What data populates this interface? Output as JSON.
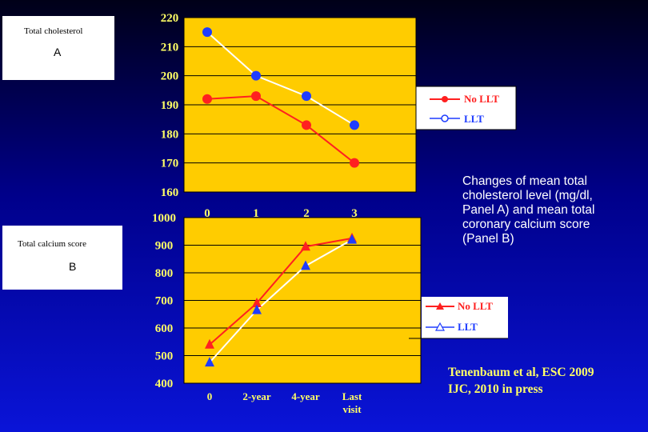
{
  "chart_data": [
    {
      "type": "line",
      "panel_label": "A",
      "ylabel": "Total cholesterol",
      "ylim": [
        160,
        220
      ],
      "yticks": [
        "160",
        "170",
        "180",
        "190",
        "200",
        "210",
        "220"
      ],
      "categories": [
        "0",
        "1",
        "2",
        "3"
      ],
      "grid": true,
      "legend_position": "right",
      "series": [
        {
          "name": "No LLT",
          "color": "#ff2020",
          "marker": "circle",
          "values": [
            192,
            193,
            183,
            170
          ]
        },
        {
          "name": "LLT",
          "color": "#ffffff",
          "marker_color": "#1e3cff",
          "marker": "circle",
          "values": [
            215,
            200,
            193,
            183
          ]
        }
      ]
    },
    {
      "type": "line",
      "panel_label": "B",
      "ylabel": "Total calcium score",
      "ylim": [
        400,
        1000
      ],
      "yticks": [
        "400",
        "500",
        "600",
        "700",
        "800",
        "900",
        "1000"
      ],
      "categories": [
        "0",
        "2-year",
        "4-year",
        "Last visit"
      ],
      "grid": true,
      "legend_position": "right",
      "series": [
        {
          "name": "No LLT",
          "color": "#ff2020",
          "marker": "triangle",
          "values": [
            540,
            690,
            895,
            925
          ]
        },
        {
          "name": "LLT",
          "color": "#ffffff",
          "marker_color": "#1e3cff",
          "marker": "triangle",
          "values": [
            475,
            665,
            825,
            920
          ]
        }
      ]
    }
  ],
  "caption": {
    "lines": [
      "Changes of mean total",
      "cholesterol level (mg/dl,",
      "Panel A) and mean total",
      "coronary calcium score",
      "(Panel B)"
    ]
  },
  "reference": {
    "line1": "Tenenbaum et al, ESC 2009",
    "line2": "IJC, 2010 in press"
  }
}
